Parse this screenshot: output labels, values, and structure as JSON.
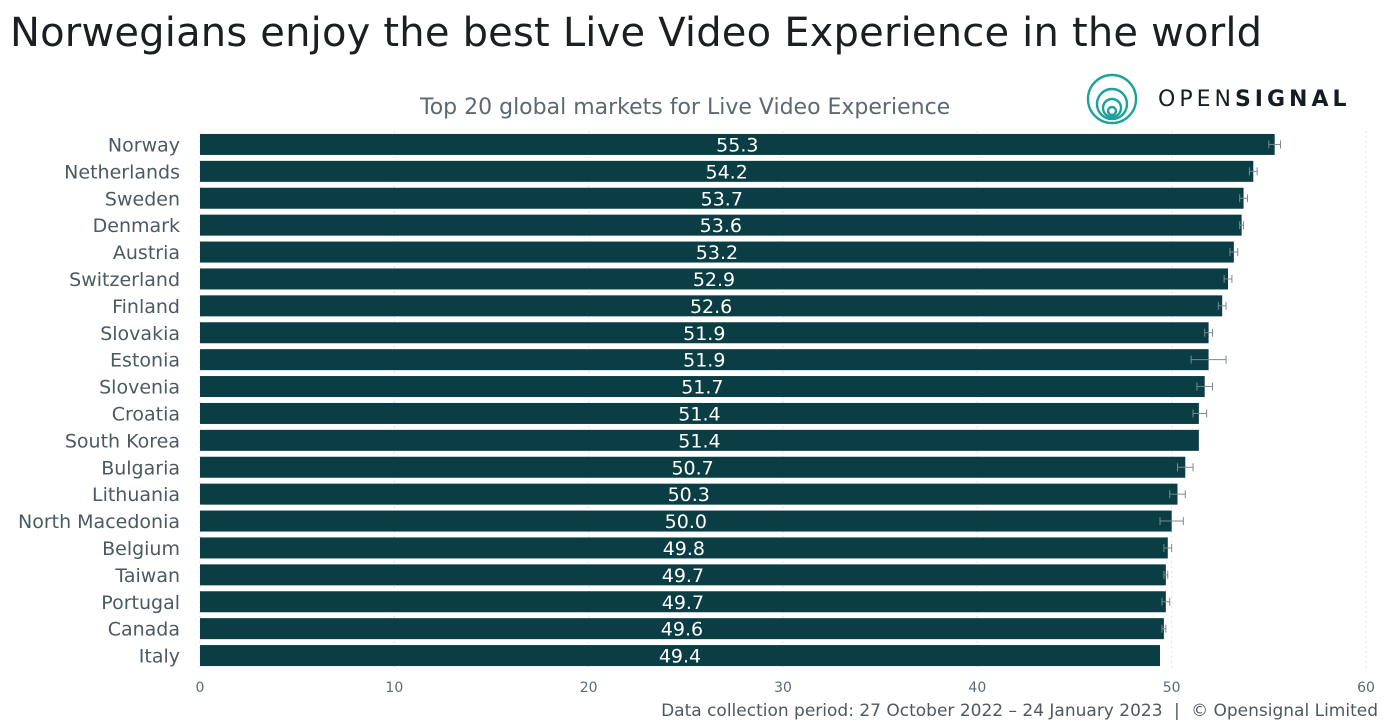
{
  "headline": "Norwegians enjoy the best Live Video Experience in the world",
  "logo": {
    "text_light": "OPEN",
    "text_bold": "SIGNAL"
  },
  "footer": {
    "period": "Data collection period: 27 October 2022 – 24 January 2023",
    "separator": "|",
    "copyright": "© Opensignal Limited"
  },
  "colors": {
    "bar": "#0b3d44",
    "bar_label": "#ffffff",
    "grid": "#dde3e5",
    "axis_text": "#5a6a70",
    "category_text": "#4a5a60"
  },
  "chart_data": {
    "type": "bar",
    "orientation": "horizontal",
    "title": "Top 20 global markets for Live Video Experience",
    "categories": [
      "Norway",
      "Netherlands",
      "Sweden",
      "Denmark",
      "Austria",
      "Switzerland",
      "Finland",
      "Slovakia",
      "Estonia",
      "Slovenia",
      "Croatia",
      "South Korea",
      "Bulgaria",
      "Lithuania",
      "North Macedonia",
      "Belgium",
      "Taiwan",
      "Portugal",
      "Canada",
      "Italy"
    ],
    "values": [
      55.3,
      54.2,
      53.7,
      53.6,
      53.2,
      52.9,
      52.6,
      51.9,
      51.9,
      51.7,
      51.4,
      51.4,
      50.7,
      50.3,
      50.0,
      49.8,
      49.7,
      49.7,
      49.6,
      49.4
    ],
    "labels": [
      "55.3",
      "54.2",
      "53.7",
      "53.6",
      "53.2",
      "52.9",
      "52.6",
      "51.9",
      "51.9",
      "51.7",
      "51.4",
      "51.4",
      "50.7",
      "50.3",
      "50.0",
      "49.8",
      "49.7",
      "49.7",
      "49.6",
      "49.4"
    ],
    "error_low": [
      55.0,
      54.0,
      53.5,
      53.5,
      53.0,
      52.7,
      52.4,
      51.7,
      51.0,
      51.3,
      51.1,
      51.4,
      50.3,
      49.9,
      49.4,
      49.6,
      49.6,
      49.5,
      49.5,
      49.4
    ],
    "error_high": [
      55.6,
      54.4,
      53.9,
      53.7,
      53.4,
      53.1,
      52.8,
      52.1,
      52.8,
      52.1,
      51.8,
      51.4,
      51.1,
      50.7,
      50.6,
      50.0,
      49.8,
      49.9,
      49.7,
      49.4
    ],
    "xlim": [
      0,
      60
    ],
    "xticks": [
      0,
      10,
      20,
      30,
      40,
      50,
      60
    ],
    "grid": true
  }
}
